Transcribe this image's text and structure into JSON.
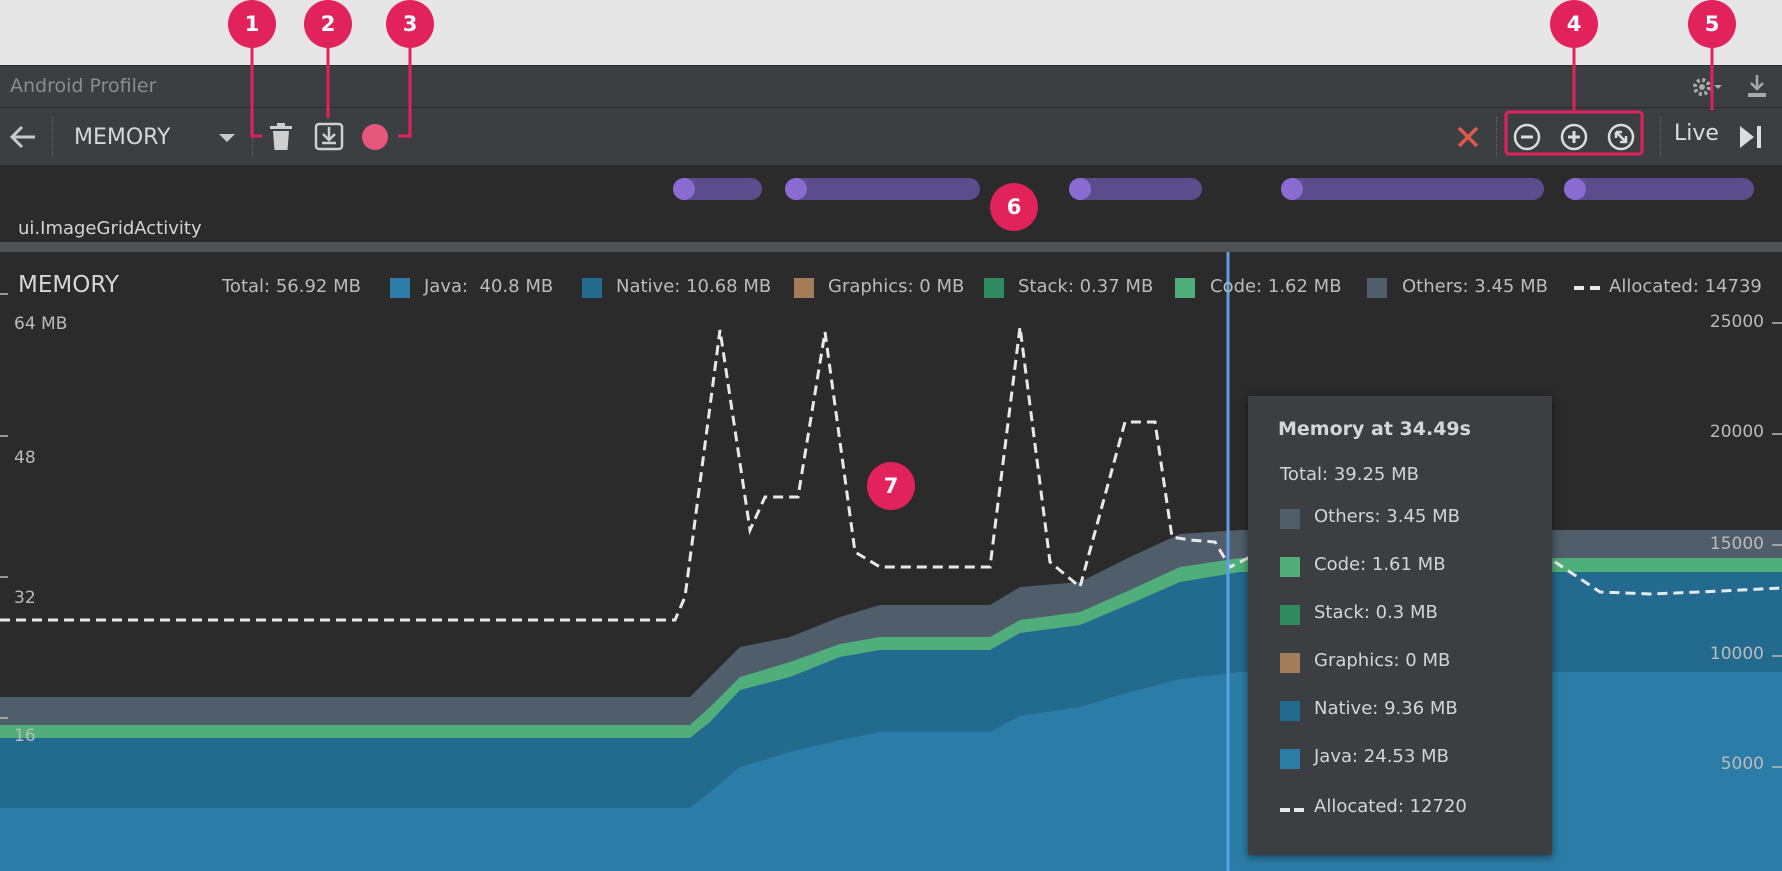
{
  "window": {
    "title": "Android Profiler"
  },
  "toolbar": {
    "profiler_label": "MEMORY",
    "live_label": "Live"
  },
  "events": {
    "activity_label": "ui.ImageGridActivity"
  },
  "chart_header": {
    "title": "MEMORY",
    "legend": {
      "total": "Total: 56.92 MB",
      "java": "Java:  40.8 MB",
      "native": "Native: 10.68 MB",
      "graphics": "Graphics: 0 MB",
      "stack": "Stack: 0.37 MB",
      "code": "Code: 1.62 MB",
      "others": "Others: 3.45 MB",
      "allocated": "Allocated: 14739"
    }
  },
  "y_axis_left": {
    "ticks": [
      "64 MB",
      "48",
      "32",
      "16"
    ]
  },
  "y_axis_right": {
    "ticks": [
      "25000",
      "20000",
      "15000",
      "10000",
      "5000"
    ]
  },
  "tooltip": {
    "title": "Memory at 34.49s",
    "total": "Total: 39.25 MB",
    "others": "Others: 3.45 MB",
    "code": "Code: 1.61 MB",
    "stack": "Stack: 0.3 MB",
    "graphics": "Graphics: 0 MB",
    "native": "Native: 9.36 MB",
    "java": "Java: 24.53 MB",
    "allocated": "Allocated: 12720"
  },
  "callouts": {
    "c1": "1",
    "c2": "2",
    "c3": "3",
    "c4": "4",
    "c5": "5",
    "c6": "6",
    "c7": "7"
  },
  "colors": {
    "java": "#2b7ca6",
    "native": "#236a8f",
    "graphics": "#a47c59",
    "stack": "#2f8a5e",
    "code": "#4fae79",
    "others": "#4f5e6a",
    "record": "#e6567a",
    "stop": "#e0584a",
    "callout": "#e2225a",
    "cursor": "#5d9ee8",
    "event_pill": "#5b4d8c"
  },
  "icons": {
    "back": "back-arrow-icon",
    "gc": "trash-icon",
    "dump": "heap-dump-icon",
    "record": "record-icon",
    "stop": "close-icon",
    "zoom_out": "zoom-out-icon",
    "zoom_in": "zoom-in-icon",
    "reset_zoom": "reset-zoom-icon",
    "jump_live": "jump-to-live-icon",
    "settings": "gear-icon",
    "download": "download-icon"
  }
}
